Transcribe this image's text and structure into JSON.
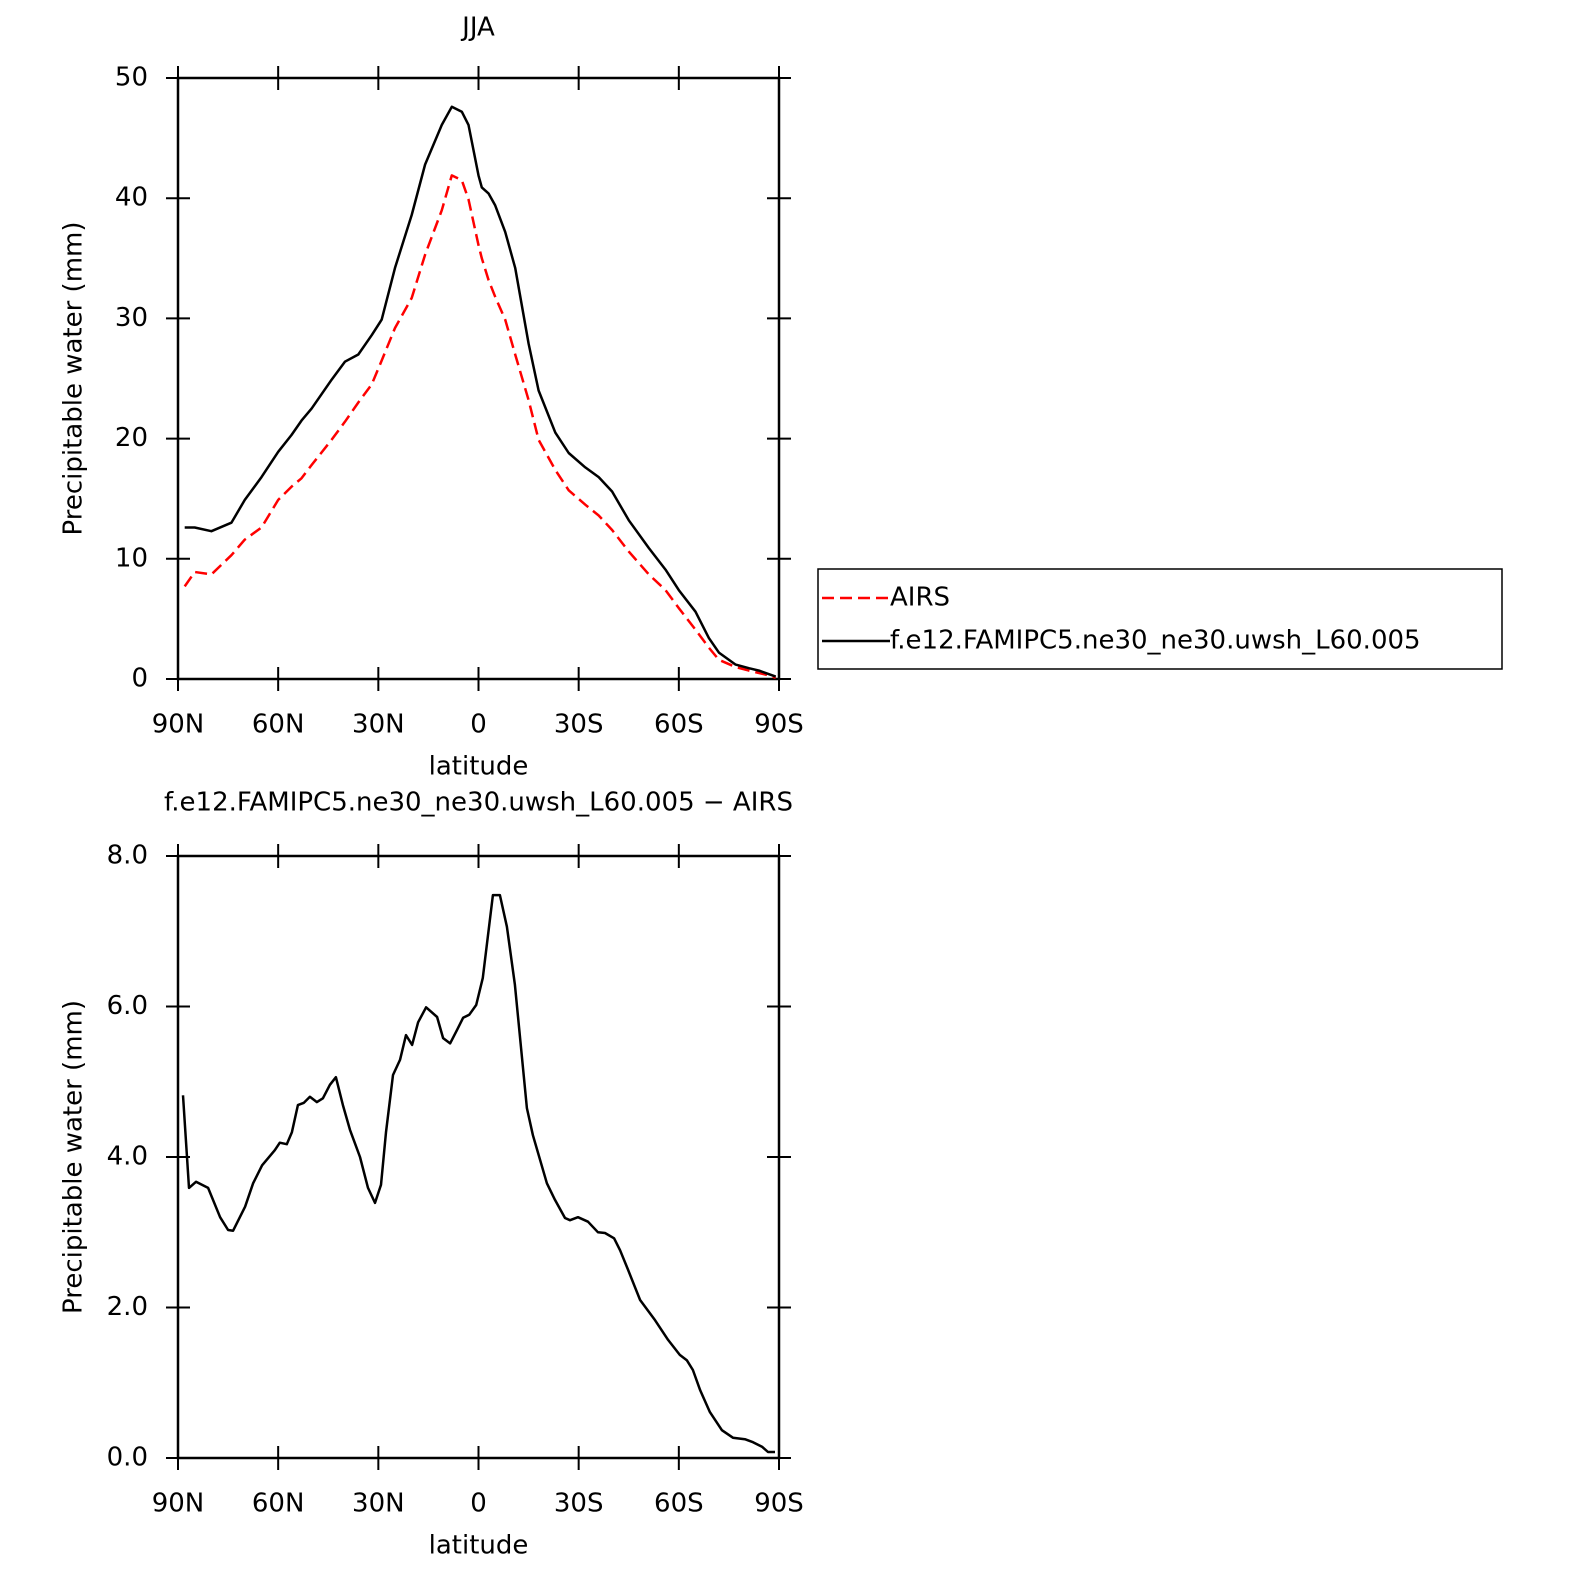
{
  "chart_data": [
    {
      "type": "line",
      "title": "JJA",
      "xlabel": "latitude",
      "ylabel": "Precipitable water (mm)",
      "x": [
        88,
        85,
        80,
        74,
        70,
        65,
        60,
        56,
        53,
        50,
        44,
        40,
        36,
        32,
        29,
        25,
        20,
        16,
        11,
        8,
        5,
        3,
        0,
        -1,
        -3,
        -5,
        -8,
        -11,
        -15,
        -18,
        -23,
        -27,
        -32,
        -36,
        -40,
        -45,
        -51,
        -56,
        -60,
        -65,
        -69,
        -72,
        -77,
        -81,
        -84,
        -87,
        -89
      ],
      "series": [
        {
          "name": "AIRS",
          "color": "#ff0000",
          "dashed": true,
          "values": [
            7.7,
            8.9,
            8.7,
            10.3,
            11.6,
            12.6,
            14.9,
            16,
            16.7,
            17.8,
            19.9,
            21.4,
            23,
            24.5,
            26.5,
            29.2,
            31.7,
            35.3,
            39,
            41.9,
            41.5,
            39.9,
            36.1,
            35,
            33.2,
            31.8,
            29.9,
            27,
            23.2,
            19.9,
            17.4,
            15.7,
            14.5,
            13.6,
            12.4,
            10.6,
            8.7,
            7.4,
            5.9,
            4.1,
            2.6,
            1.6,
            1,
            0.7,
            0.5,
            0.3,
            0.1
          ]
        },
        {
          "name": "f.e12.FAMIPC5.ne30_ne30.uwsh_L60.005",
          "color": "#000000",
          "dashed": false,
          "values": [
            12.6,
            12.6,
            12.3,
            13,
            14.9,
            16.8,
            18.9,
            20.3,
            21.5,
            22.5,
            24.9,
            26.4,
            27,
            28.6,
            29.9,
            34.2,
            38.6,
            42.8,
            46.1,
            47.6,
            47.2,
            46.1,
            41.9,
            40.9,
            40.4,
            39.4,
            37.2,
            34.2,
            27.9,
            24,
            20.5,
            18.8,
            17.6,
            16.8,
            15.6,
            13.2,
            10.9,
            9.1,
            7.4,
            5.6,
            3.4,
            2.2,
            1.2,
            0.9,
            0.7,
            0.4,
            0.2
          ]
        }
      ],
      "xlim": [
        90,
        -90
      ],
      "xticks": [
        {
          "value": 90,
          "label": "90N"
        },
        {
          "value": 60,
          "label": "60N"
        },
        {
          "value": 30,
          "label": "30N"
        },
        0,
        {
          "value": -30,
          "label": "30S"
        },
        {
          "value": -60,
          "label": "60S"
        },
        {
          "value": -90,
          "label": "90S"
        }
      ],
      "ylim": [
        0,
        50
      ],
      "yticks": [
        0,
        10,
        20,
        30,
        40,
        50
      ],
      "legend": "right"
    },
    {
      "type": "line",
      "title": "f.e12.FAMIPC5.ne30_ne30.uwsh_L60.005 − AIRS",
      "xlabel": "latitude",
      "ylabel": "Precipitable water (mm)",
      "x": [
        88.5,
        86.7,
        84.6,
        81,
        77.4,
        75,
        73.5,
        69.9,
        67.5,
        64.8,
        61,
        59.5,
        57.4,
        55.9,
        54.1,
        52.3,
        50.5,
        48.4,
        46.6,
        44.5,
        42.7,
        40.6,
        38.5,
        35.5,
        33.1,
        31,
        29.2,
        27.7,
        25.6,
        23.5,
        21.7,
        19.9,
        18.1,
        15.7,
        12.4,
        10.6,
        8.5,
        6.4,
        4.6,
        2.8,
        0.7,
        -1.3,
        -4.3,
        -6.4,
        -8.5,
        -10.9,
        -14.5,
        -16.3,
        -20.5,
        -22.9,
        -25.9,
        -27.4,
        -29.8,
        -32.8,
        -35.8,
        -37.9,
        -40.6,
        -42.4,
        -44.8,
        -48.4,
        -52.9,
        -56.8,
        -60.3,
        -62.4,
        -64.2,
        -66.4,
        -69.3,
        -72.9,
        -76.2,
        -79.8,
        -82.2,
        -84.9,
        -86.7,
        -88.8
      ],
      "series": [
        {
          "name": "f.e12.FAMIPC5.ne30_ne30.uwsh_L60.005 − AIRS",
          "color": "#000000",
          "dashed": false,
          "values": [
            4.82,
            3.59,
            3.67,
            3.59,
            3.2,
            3.03,
            3.02,
            3.34,
            3.65,
            3.89,
            4.09,
            4.19,
            4.17,
            4.33,
            4.69,
            4.72,
            4.8,
            4.73,
            4.78,
            4.96,
            5.06,
            4.69,
            4.36,
            4.0,
            3.59,
            3.39,
            3.63,
            4.33,
            5.09,
            5.29,
            5.62,
            5.49,
            5.79,
            5.99,
            5.86,
            5.58,
            5.51,
            5.69,
            5.85,
            5.89,
            6.02,
            6.38,
            7.48,
            7.48,
            7.06,
            6.29,
            4.65,
            4.29,
            3.65,
            3.43,
            3.19,
            3.16,
            3.2,
            3.14,
            3.0,
            2.99,
            2.92,
            2.76,
            2.5,
            2.1,
            1.83,
            1.57,
            1.37,
            1.3,
            1.17,
            0.9,
            0.61,
            0.37,
            0.27,
            0.25,
            0.21,
            0.15,
            0.08,
            0.08
          ]
        }
      ],
      "xlim": [
        90,
        -90
      ],
      "xticks": [
        {
          "value": 90,
          "label": "90N"
        },
        {
          "value": 60,
          "label": "60N"
        },
        {
          "value": 30,
          "label": "30N"
        },
        0,
        {
          "value": -30,
          "label": "30S"
        },
        {
          "value": -60,
          "label": "60S"
        },
        {
          "value": -90,
          "label": "90S"
        }
      ],
      "ylim": [
        0,
        8
      ],
      "yticks": [
        {
          "value": 0,
          "label": "0.0"
        },
        {
          "value": 2,
          "label": "2.0"
        },
        {
          "value": 4,
          "label": "4.0"
        },
        {
          "value": 6,
          "label": "6.0"
        },
        {
          "value": 8,
          "label": "8.0"
        }
      ]
    }
  ]
}
